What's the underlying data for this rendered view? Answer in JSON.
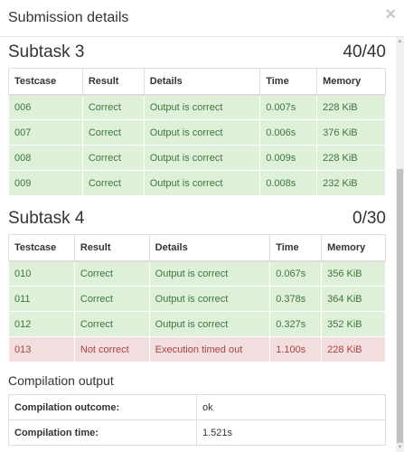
{
  "modal": {
    "title": "Submission details",
    "close_symbol": "×"
  },
  "columns": [
    "Testcase",
    "Result",
    "Details",
    "Time",
    "Memory"
  ],
  "subtasks": [
    {
      "name": "Subtask 3",
      "score": "40/40",
      "rows": [
        {
          "testcase": "006",
          "result": "Correct",
          "details": "Output is correct",
          "time": "0.007s",
          "memory": "228 KiB",
          "status": "ok"
        },
        {
          "testcase": "007",
          "result": "Correct",
          "details": "Output is correct",
          "time": "0.006s",
          "memory": "376 KiB",
          "status": "ok"
        },
        {
          "testcase": "008",
          "result": "Correct",
          "details": "Output is correct",
          "time": "0.009s",
          "memory": "228 KiB",
          "status": "ok"
        },
        {
          "testcase": "009",
          "result": "Correct",
          "details": "Output is correct",
          "time": "0.008s",
          "memory": "232 KiB",
          "status": "ok"
        }
      ]
    },
    {
      "name": "Subtask 4",
      "score": "0/30",
      "rows": [
        {
          "testcase": "010",
          "result": "Correct",
          "details": "Output is correct",
          "time": "0.067s",
          "memory": "356 KiB",
          "status": "ok"
        },
        {
          "testcase": "011",
          "result": "Correct",
          "details": "Output is correct",
          "time": "0.378s",
          "memory": "364 KiB",
          "status": "ok"
        },
        {
          "testcase": "012",
          "result": "Correct",
          "details": "Output is correct",
          "time": "0.327s",
          "memory": "352 KiB",
          "status": "ok"
        },
        {
          "testcase": "013",
          "result": "Not correct",
          "details": "Execution timed out",
          "time": "1.100s",
          "memory": "228 KiB",
          "status": "bad"
        }
      ]
    }
  ],
  "compilation": {
    "title": "Compilation output",
    "rows": [
      {
        "label": "Compilation outcome:",
        "value": "ok"
      },
      {
        "label": "Compilation time:",
        "value": "1.521s"
      }
    ]
  },
  "colors": {
    "correct_bg": "#dff0d8",
    "correct_text": "#3c763d",
    "wrong_bg": "#f2dede",
    "wrong_text": "#a94442"
  }
}
